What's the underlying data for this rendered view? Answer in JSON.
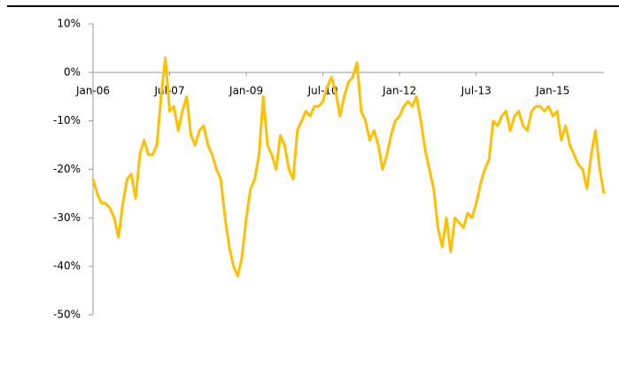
{
  "chart_data": {
    "type": "line",
    "categories": [
      "Jan-06",
      null,
      null,
      null,
      null,
      null,
      null,
      null,
      null,
      null,
      null,
      null,
      null,
      null,
      null,
      null,
      null,
      null,
      "Jul-07",
      null,
      null,
      null,
      null,
      null,
      null,
      null,
      null,
      null,
      null,
      null,
      null,
      null,
      null,
      null,
      null,
      null,
      "Jan-09",
      null,
      null,
      null,
      null,
      null,
      null,
      null,
      null,
      null,
      null,
      null,
      null,
      null,
      null,
      null,
      null,
      null,
      "Jul-10",
      null,
      null,
      null,
      null,
      null,
      null,
      null,
      null,
      null,
      null,
      null,
      null,
      null,
      null,
      null,
      null,
      null,
      "Jan-12",
      null,
      null,
      null,
      null,
      null,
      null,
      null,
      null,
      null,
      null,
      null,
      null,
      null,
      null,
      null,
      null,
      null,
      "Jul-13",
      null,
      null,
      null,
      null,
      null,
      null,
      null,
      null,
      null,
      null,
      null,
      null,
      null,
      null,
      null,
      null,
      null,
      "Jan-15",
      null,
      null,
      null,
      null,
      null,
      null,
      null,
      null,
      null,
      null,
      null,
      null
    ],
    "values": [
      -22,
      -25,
      -27,
      -27,
      -28,
      -30,
      -34,
      -27,
      -22,
      -21,
      -26,
      -17,
      -14,
      -17,
      -17,
      -15,
      -5,
      3,
      -8,
      -7,
      -12,
      -8,
      -5,
      -13,
      -15,
      -12,
      -11,
      -15,
      -17,
      -20,
      -22,
      -30,
      -36,
      -40,
      -42,
      -38,
      -30,
      -24,
      -22,
      -17,
      -5,
      -15,
      -17,
      -20,
      -13,
      -15,
      -20,
      -22,
      -12,
      -10,
      -8,
      -9,
      -7,
      -7,
      -6,
      -3,
      -1,
      -4,
      -9,
      -5,
      -2,
      -1,
      2,
      -8,
      -10,
      -14,
      -12,
      -15,
      -20,
      -17,
      -13,
      -10,
      -9,
      -7,
      -6,
      -7,
      -5,
      -10,
      -16,
      -20,
      -24,
      -32,
      -36,
      -30,
      -37,
      -30,
      -31,
      -32,
      -29,
      -30,
      -27,
      -23,
      -20,
      -18,
      -10,
      -11,
      -9,
      -8,
      -12,
      -9,
      -8,
      -11,
      -12,
      -8,
      -7,
      -7,
      -8,
      -7,
      -9,
      -8,
      -14,
      -11,
      -15,
      -17,
      -19,
      -20,
      -24,
      -17,
      -12,
      -20,
      -25
    ],
    "color": "#FFC000",
    "ylim": [
      -50,
      10
    ],
    "yticks": [
      {
        "value": -50,
        "label": "-50%"
      },
      {
        "value": -40,
        "label": "-40%"
      },
      {
        "value": -30,
        "label": "-30%"
      },
      {
        "value": -20,
        "label": "-20%"
      },
      {
        "value": -10,
        "label": "-10%"
      },
      {
        "value": 0,
        "label": "0%"
      },
      {
        "value": 10,
        "label": "10%"
      }
    ]
  }
}
